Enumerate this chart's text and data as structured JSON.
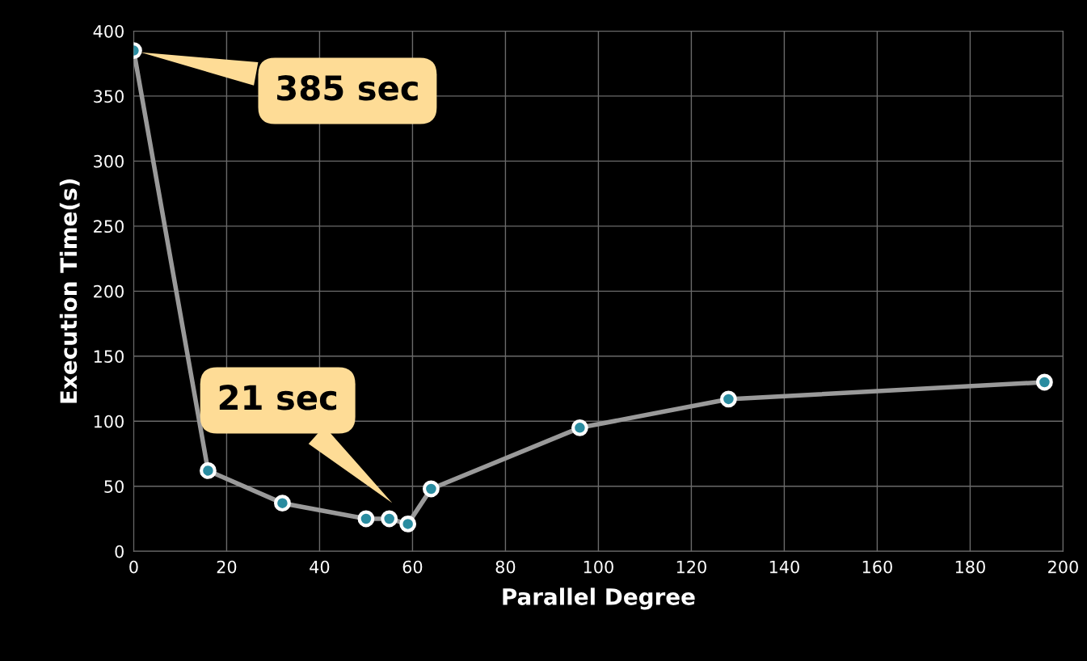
{
  "chart_data": {
    "type": "line",
    "xlabel": "Parallel Degree",
    "ylabel": "Execution Time(s)",
    "x": [
      0,
      16,
      32,
      50,
      55,
      59,
      64,
      96,
      128,
      196
    ],
    "series": [
      {
        "color": "#2a8ca0",
        "values": [
          385,
          62,
          37,
          25,
          25,
          21,
          48,
          95,
          117,
          130
        ]
      }
    ],
    "xlim": [
      0,
      200
    ],
    "xticks": [
      0,
      20,
      40,
      60,
      80,
      100,
      120,
      140,
      160,
      180,
      200
    ],
    "ylim": [
      0,
      400
    ],
    "yticks": [
      0,
      50,
      100,
      150,
      200,
      250,
      300,
      350,
      400
    ],
    "grid": true,
    "marker": "circle",
    "line_style": "solid",
    "legend": false,
    "annotations": [
      "385 sec",
      "21 sec"
    ]
  }
}
